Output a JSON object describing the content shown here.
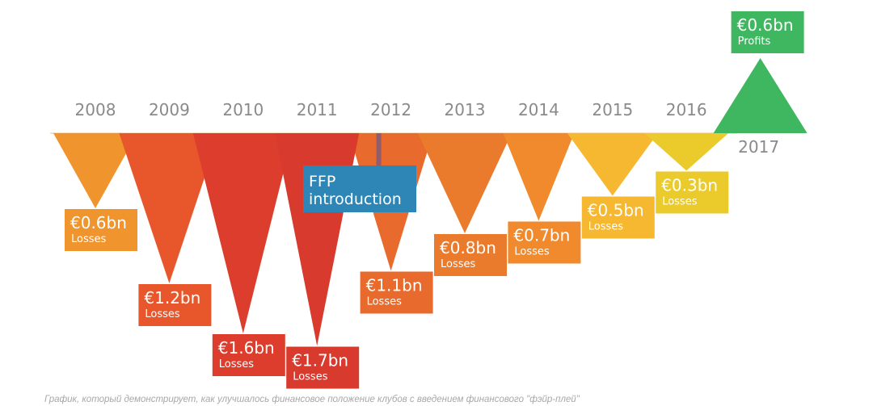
{
  "chart_data": {
    "type": "bar",
    "title": "",
    "xlabel": "",
    "ylabel": "",
    "unit": "€bn",
    "categories": [
      "2008",
      "2009",
      "2010",
      "2011",
      "2012",
      "2013",
      "2014",
      "2015",
      "2016",
      "2017"
    ],
    "series": [
      {
        "values": [
          -0.6,
          -1.2,
          -1.6,
          -1.7,
          -1.1,
          -0.8,
          -0.7,
          -0.5,
          -0.3,
          0.6
        ]
      }
    ],
    "point_labels": [
      {
        "value": "€0.6bn",
        "sub": "Losses"
      },
      {
        "value": "€1.2bn",
        "sub": "Losses"
      },
      {
        "value": "€1.6bn",
        "sub": "Losses"
      },
      {
        "value": "€1.7bn",
        "sub": "Losses"
      },
      {
        "value": "€1.1bn",
        "sub": "Losses"
      },
      {
        "value": "€0.8bn",
        "sub": "Losses"
      },
      {
        "value": "€0.7bn",
        "sub": "Losses"
      },
      {
        "value": "€0.5bn",
        "sub": "Losses"
      },
      {
        "value": "€0.3bn",
        "sub": "Losses"
      },
      {
        "value": "€0.6bn",
        "sub": "Profits"
      }
    ],
    "colors": [
      "#f0952e",
      "#e8572c",
      "#dc3d2c",
      "#d83a2e",
      "#e86a2c",
      "#ea7a2c",
      "#f08a2c",
      "#f6b731",
      "#ebcb2b",
      "#3fb760"
    ],
    "annotation": {
      "text_lines": [
        "FFP",
        "introduction"
      ],
      "year": "2012",
      "color": "#2e86b6"
    }
  },
  "caption": "График, который демонстрирует, как улучшалось финансовое положение клубов с введением финансового \"фэйр-плей\""
}
